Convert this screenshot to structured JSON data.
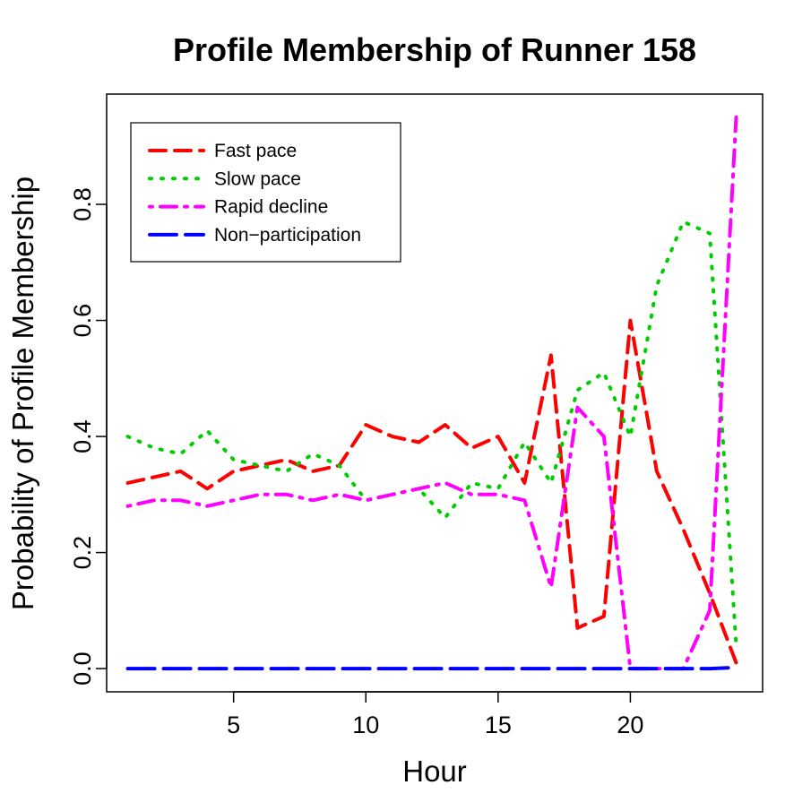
{
  "chart_data": {
    "type": "line",
    "title": "Profile Membership of Runner 158",
    "xlabel": "Hour",
    "ylabel": "Probability of Profile Membership",
    "xlim": [
      0.2,
      25
    ],
    "ylim": [
      -0.04,
      0.99
    ],
    "x_ticks": [
      5,
      10,
      15,
      20
    ],
    "y_ticks": [
      0.0,
      0.2,
      0.4,
      0.6,
      0.8
    ],
    "x_tick_labels": [
      "5",
      "10",
      "15",
      "20"
    ],
    "y_tick_labels": [
      "0.0",
      "0.2",
      "0.4",
      "0.6",
      "0.8"
    ],
    "grid": false,
    "legend_position": "top-left",
    "x": [
      1,
      2,
      3,
      4,
      5,
      6,
      7,
      8,
      9,
      10,
      11,
      12,
      13,
      14,
      15,
      16,
      17,
      18,
      19,
      20,
      21,
      22,
      23,
      24
    ],
    "series": [
      {
        "name": "Fast pace",
        "color": "#ff0000",
        "dash": "dashed",
        "values": [
          0.32,
          0.33,
          0.34,
          0.31,
          0.34,
          0.35,
          0.36,
          0.34,
          0.35,
          0.42,
          0.4,
          0.39,
          0.42,
          0.38,
          0.4,
          0.32,
          0.54,
          0.07,
          0.09,
          0.6,
          0.34,
          0.24,
          0.13,
          0.01
        ]
      },
      {
        "name": "Slow pace",
        "color": "#00cd00",
        "dash": "dotted",
        "values": [
          0.4,
          0.38,
          0.37,
          0.41,
          0.36,
          0.35,
          0.34,
          0.37,
          0.35,
          0.29,
          0.3,
          0.31,
          0.26,
          0.32,
          0.31,
          0.39,
          0.32,
          0.48,
          0.51,
          0.4,
          0.66,
          0.77,
          0.75,
          0.04
        ]
      },
      {
        "name": "Rapid decline",
        "color": "#ff00ff",
        "dash": "dotdash",
        "values": [
          0.28,
          0.29,
          0.29,
          0.28,
          0.29,
          0.3,
          0.3,
          0.29,
          0.3,
          0.29,
          0.3,
          0.31,
          0.32,
          0.3,
          0.3,
          0.29,
          0.14,
          0.45,
          0.4,
          0.0,
          0.0,
          0.0,
          0.1,
          0.95
        ]
      },
      {
        "name": "Non−participation",
        "color": "#0000ff",
        "dash": "longdash",
        "values": [
          0.0,
          0.0,
          0.0,
          0.0,
          0.0,
          0.0,
          0.0,
          0.0,
          0.0,
          0.0,
          0.0,
          0.0,
          0.0,
          0.0,
          0.0,
          0.0,
          0.0,
          0.0,
          0.0,
          0.0,
          0.0,
          0.0,
          0.0,
          0.002
        ]
      }
    ]
  }
}
